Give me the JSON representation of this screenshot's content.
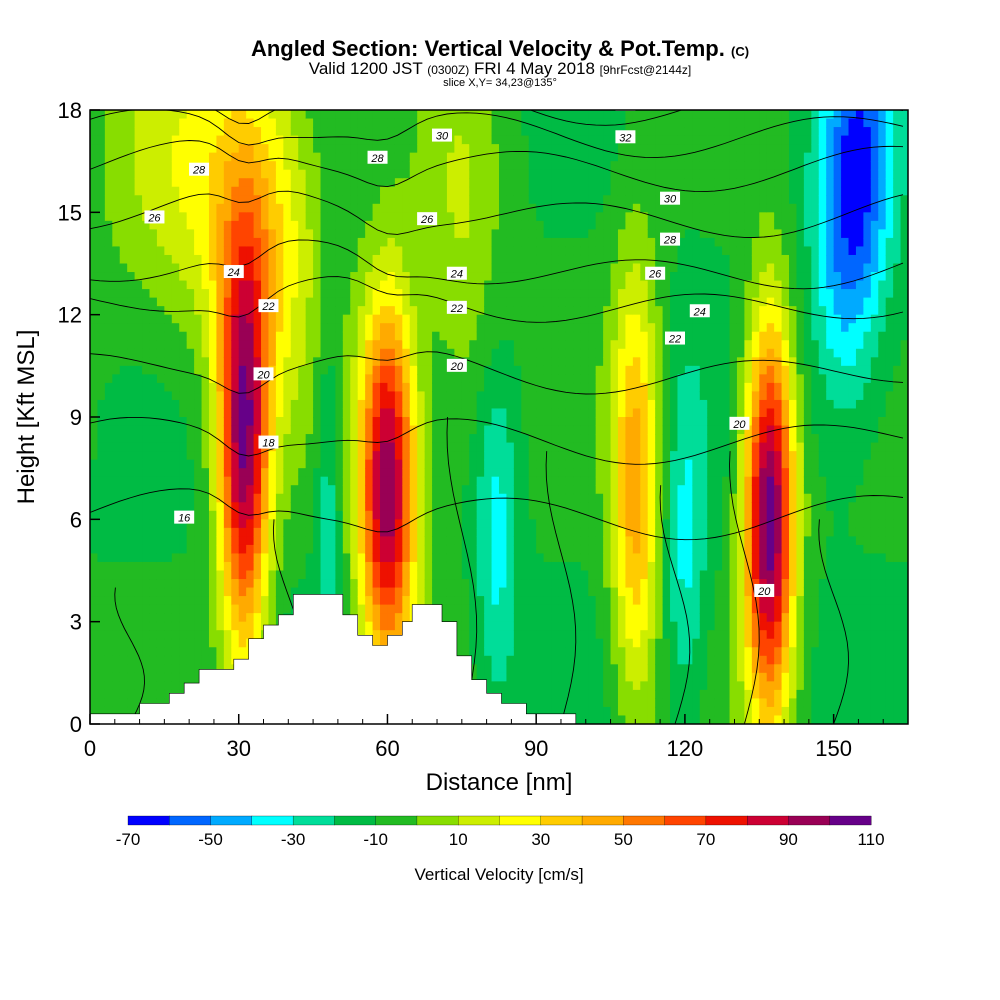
{
  "title": {
    "main": "Angled Section: Vertical Velocity & Pot.Temp.",
    "main_unit": "(C)",
    "sub_prefix": "Valid 1200 JST",
    "sub_utc": "(0300Z)",
    "sub_date": "FRI 4 May 2018",
    "sub_fcst": "[9hrFcst@2144z]",
    "slice": "slice X,Y= 34,23@135°"
  },
  "chart_data": {
    "type": "heatmap",
    "xlabel": "Distance [nm]",
    "ylabel": "Height [Kft MSL]",
    "xlim": [
      0,
      165
    ],
    "ylim": [
      0,
      18
    ],
    "x_ticks": [
      "0",
      "30",
      "60",
      "90",
      "120",
      "150"
    ],
    "y_ticks": [
      "0",
      "3",
      "6",
      "9",
      "12",
      "15",
      "18"
    ],
    "background_value": -10,
    "updrafts": [
      {
        "x": 31,
        "y": 8.0,
        "peak": 92,
        "sx": 3.5,
        "sy": 4.2
      },
      {
        "x": 60,
        "y": 7.0,
        "peak": 100,
        "sx": 4.0,
        "sy": 3.8
      },
      {
        "x": 110,
        "y": 7.0,
        "peak": 45,
        "sx": 3.5,
        "sy": 4.5
      },
      {
        "x": 137,
        "y": 6.0,
        "peak": 108,
        "sx": 3.5,
        "sy": 4.0
      },
      {
        "x": 35,
        "y": 14.5,
        "peak": 25,
        "sx": 8.0,
        "sy": 4.0
      },
      {
        "x": 75,
        "y": 14.0,
        "peak": 10,
        "sx": 6.0,
        "sy": 4.5
      },
      {
        "x": 20,
        "y": 16.0,
        "peak": 15,
        "sx": 12.0,
        "sy": 3.5
      }
    ],
    "downdrafts": [
      {
        "x": 82,
        "y": 5.5,
        "peak": -35,
        "sx": 3.0,
        "sy": 3.5
      },
      {
        "x": 120,
        "y": 5.0,
        "peak": -33,
        "sx": 3.0,
        "sy": 3.5
      },
      {
        "x": 155,
        "y": 16.5,
        "peak": -55,
        "sx": 5.0,
        "sy": 3.0
      },
      {
        "x": 152,
        "y": 12.5,
        "peak": -35,
        "sx": 5.0,
        "sy": 3.0
      },
      {
        "x": 48,
        "y": 7.0,
        "peak": -28,
        "sx": 1.8,
        "sy": 4.0
      }
    ],
    "terrain": [
      [
        0,
        0.3
      ],
      [
        10,
        0.3
      ],
      [
        10,
        0.6
      ],
      [
        16,
        0.6
      ],
      [
        16,
        0.9
      ],
      [
        19,
        0.9
      ],
      [
        19,
        1.2
      ],
      [
        22,
        1.2
      ],
      [
        22,
        1.6
      ],
      [
        29,
        1.6
      ],
      [
        29,
        1.9
      ],
      [
        32,
        1.9
      ],
      [
        32,
        2.5
      ],
      [
        35,
        2.5
      ],
      [
        35,
        2.9
      ],
      [
        38,
        2.9
      ],
      [
        38,
        3.2
      ],
      [
        41,
        3.2
      ],
      [
        41,
        3.8
      ],
      [
        51,
        3.8
      ],
      [
        51,
        3.2
      ],
      [
        54,
        3.2
      ],
      [
        54,
        2.6
      ],
      [
        57,
        2.6
      ],
      [
        57,
        2.3
      ],
      [
        60,
        2.3
      ],
      [
        60,
        2.6
      ],
      [
        63,
        2.6
      ],
      [
        63,
        3.0
      ],
      [
        65,
        3.0
      ],
      [
        65,
        3.5
      ],
      [
        71,
        3.5
      ],
      [
        71,
        3.0
      ],
      [
        74,
        3.0
      ],
      [
        74,
        2.0
      ],
      [
        77,
        2.0
      ],
      [
        77,
        1.3
      ],
      [
        80,
        1.3
      ],
      [
        80,
        0.9
      ],
      [
        83,
        0.9
      ],
      [
        83,
        0.6
      ],
      [
        88,
        0.6
      ],
      [
        88,
        0.3
      ],
      [
        98,
        0.3
      ],
      [
        98,
        0.0
      ],
      [
        165,
        0.0
      ]
    ],
    "isentropes": {
      "levels": [
        {
          "theta": 16,
          "y": 6.2,
          "label": "16",
          "label_x": 19
        },
        {
          "theta": 18,
          "y": 8.4,
          "label": "18",
          "label_x": 36
        },
        {
          "theta": 20,
          "y": 10.4,
          "label": "20",
          "label_x": 35
        },
        {
          "theta": 22,
          "y": 12.4,
          "label": "22",
          "label_x": 36
        },
        {
          "theta": 24,
          "y": 13.4,
          "label": "24",
          "label_x": 29
        },
        {
          "theta": 26,
          "y": 15.0,
          "label": "26",
          "label_x": 13
        },
        {
          "theta": 28,
          "y": 16.4,
          "label": "28",
          "label_x": 22
        },
        {
          "theta": 30,
          "y": 17.4,
          "label": "30",
          "label_x": 71
        },
        {
          "theta": 32,
          "y": 18.3,
          "label": "32",
          "label_x": 108
        }
      ],
      "extra_labels": [
        {
          "text": "28",
          "x": 58,
          "y": 16.6
        },
        {
          "text": "26",
          "x": 68,
          "y": 14.8
        },
        {
          "text": "24",
          "x": 74,
          "y": 13.2
        },
        {
          "text": "22",
          "x": 74,
          "y": 12.2
        },
        {
          "text": "20",
          "x": 74,
          "y": 10.5
        },
        {
          "text": "32",
          "x": 108,
          "y": 17.2
        },
        {
          "text": "30",
          "x": 117,
          "y": 15.4
        },
        {
          "text": "28",
          "x": 117,
          "y": 14.2
        },
        {
          "text": "26",
          "x": 114,
          "y": 13.2
        },
        {
          "text": "24",
          "x": 123,
          "y": 12.1
        },
        {
          "text": "22",
          "x": 118,
          "y": 11.3
        },
        {
          "text": "20",
          "x": 131,
          "y": 8.8
        },
        {
          "text": "20",
          "x": 136,
          "y": 3.9
        }
      ]
    },
    "colorbar": {
      "title": "Vertical Velocity [cm/s]",
      "tick_labels": [
        "-70",
        "-50",
        "-30",
        "-10",
        "10",
        "30",
        "50",
        "70",
        "90",
        "110"
      ],
      "bins": [
        {
          "from": -70,
          "to": -60,
          "color": "#0000ff"
        },
        {
          "from": -60,
          "to": -50,
          "color": "#0066ff"
        },
        {
          "from": -50,
          "to": -40,
          "color": "#00aaff"
        },
        {
          "from": -40,
          "to": -30,
          "color": "#00ffff"
        },
        {
          "from": -30,
          "to": -20,
          "color": "#00dd99"
        },
        {
          "from": -20,
          "to": -10,
          "color": "#00bb44"
        },
        {
          "from": -10,
          "to": 0,
          "color": "#22bb22"
        },
        {
          "from": 0,
          "to": 10,
          "color": "#88dd00"
        },
        {
          "from": 10,
          "to": 20,
          "color": "#ccee00"
        },
        {
          "from": 20,
          "to": 30,
          "color": "#ffff00"
        },
        {
          "from": 30,
          "to": 40,
          "color": "#ffcc00"
        },
        {
          "from": 40,
          "to": 50,
          "color": "#ffaa00"
        },
        {
          "from": 50,
          "to": 60,
          "color": "#ff7700"
        },
        {
          "from": 60,
          "to": 70,
          "color": "#ff4400"
        },
        {
          "from": 70,
          "to": 80,
          "color": "#ee1100"
        },
        {
          "from": 80,
          "to": 90,
          "color": "#cc0033"
        },
        {
          "from": 90,
          "to": 100,
          "color": "#990055"
        },
        {
          "from": 100,
          "to": 110,
          "color": "#660088"
        }
      ]
    }
  }
}
